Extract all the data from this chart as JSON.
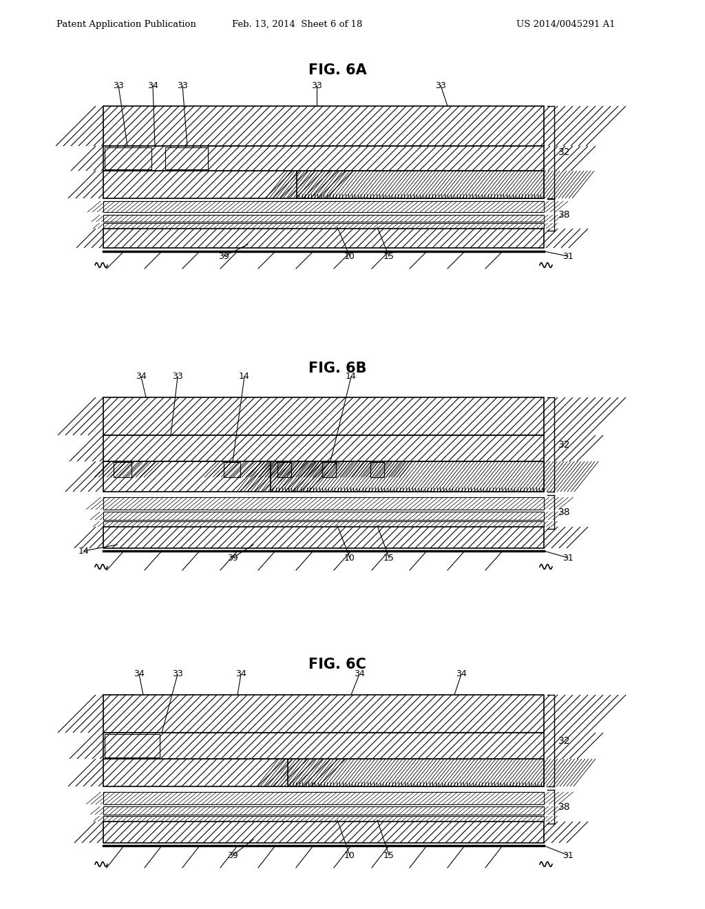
{
  "page_header": {
    "left": "Patent Application Publication",
    "center": "Feb. 13, 2014  Sheet 6 of 18",
    "right": "US 2014/0045291 A1"
  },
  "bg_color": "#ffffff",
  "line_color": "#000000"
}
